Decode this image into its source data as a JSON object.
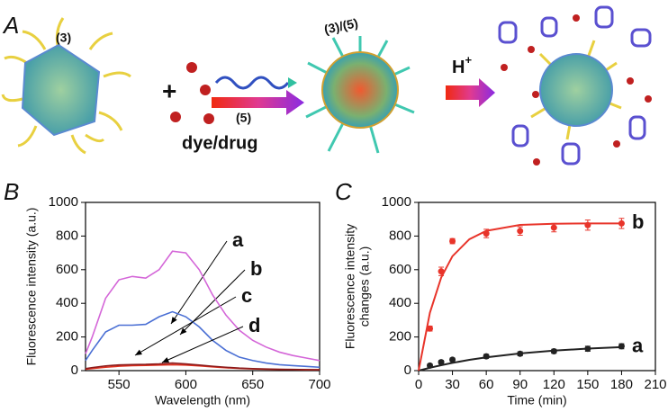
{
  "panel_a": {
    "label": "A",
    "particle_1": "(3)",
    "plus": "+",
    "cargo": "dye/drug",
    "strand": "(5)",
    "particle_2": "(3)/(5)",
    "trigger": {
      "base": "H",
      "sup": "+"
    }
  },
  "chart_data": [
    {
      "type": "line",
      "panel": "B",
      "xlabel": "Wavelength (nm)",
      "ylabel": [
        "Fluorescence intensity (a.u.)"
      ],
      "x": [
        525,
        530,
        540,
        550,
        560,
        570,
        580,
        590,
        600,
        610,
        620,
        630,
        640,
        650,
        660,
        670,
        680,
        690,
        700
      ],
      "xlim": [
        525,
        700
      ],
      "xticks": [
        550,
        600,
        650,
        700
      ],
      "ylim": [
        0,
        1000
      ],
      "yticks": [
        0,
        200,
        400,
        600,
        800,
        1000
      ],
      "series": [
        {
          "name": "a",
          "color": "#e0301e",
          "values": [
            8,
            12,
            20,
            26,
            30,
            31,
            33,
            35,
            33,
            28,
            22,
            17,
            13,
            10,
            8,
            7,
            6,
            5,
            5
          ]
        },
        {
          "name": "b",
          "color": "#8b1a1a",
          "values": [
            12,
            18,
            28,
            34,
            36,
            37,
            40,
            45,
            40,
            33,
            26,
            20,
            15,
            12,
            10,
            8,
            7,
            6,
            5
          ]
        },
        {
          "name": "c",
          "color": "#4a6fd4",
          "values": [
            60,
            120,
            230,
            270,
            270,
            275,
            320,
            350,
            320,
            260,
            180,
            120,
            80,
            60,
            45,
            35,
            30,
            25,
            20
          ]
        },
        {
          "name": "d",
          "color": "#d466d8",
          "values": [
            100,
            200,
            430,
            540,
            560,
            550,
            600,
            710,
            700,
            600,
            450,
            330,
            240,
            180,
            140,
            110,
            90,
            75,
            60
          ]
        }
      ]
    },
    {
      "type": "scatter",
      "panel": "C",
      "xlabel": "Time (min)",
      "ylabel": [
        "Fluorescence intensity",
        "changes (a.u.)"
      ],
      "xlim": [
        0,
        210
      ],
      "xticks": [
        0,
        30,
        60,
        90,
        120,
        150,
        180,
        210
      ],
      "ylim": [
        0,
        1000
      ],
      "yticks": [
        0,
        200,
        400,
        600,
        800,
        1000
      ],
      "fit_x": [
        0,
        10,
        20,
        30,
        45,
        60,
        90,
        120,
        150,
        180
      ],
      "series": [
        {
          "name": "a",
          "color": "#222222",
          "x": [
            10,
            20,
            30,
            60,
            90,
            120,
            150,
            180
          ],
          "values": [
            30,
            50,
            65,
            85,
            100,
            115,
            130,
            145
          ],
          "errors": [
            10,
            10,
            10,
            12,
            12,
            12,
            15,
            15
          ],
          "fit": [
            0,
            17,
            32,
            46,
            64,
            79,
            102,
            119,
            131,
            140
          ]
        },
        {
          "name": "b",
          "color": "#e8342a",
          "x": [
            10,
            20,
            30,
            60,
            90,
            120,
            150,
            180
          ],
          "values": [
            250,
            590,
            770,
            815,
            830,
            850,
            865,
            875
          ],
          "errors": [
            15,
            25,
            15,
            25,
            25,
            25,
            30,
            30
          ],
          "fit": [
            0,
            344,
            553,
            680,
            781,
            831,
            866,
            873,
            875,
            875
          ]
        }
      ]
    }
  ]
}
